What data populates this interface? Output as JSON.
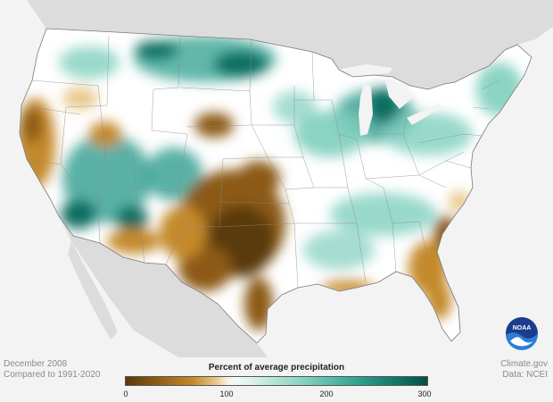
{
  "map": {
    "subject": "contiguous United States precipitation anomaly",
    "period_text": "December 2008",
    "baseline_text": "Compared to 1991-2020"
  },
  "legend": {
    "title": "Percent of average precipitation",
    "ticks": [
      "0",
      "100",
      "200",
      "300"
    ],
    "colors": [
      "#5a3a0c",
      "#c4892a",
      "#faf4e6",
      "#7fcfbe",
      "#074e45"
    ]
  },
  "credits": {
    "site": "Climate.gov",
    "source": "Data: NCEI"
  },
  "logo": {
    "icon": "noaa-logo-icon",
    "text": "NOAA"
  },
  "colors": {
    "land": "#ffffff",
    "ocean": "#f3f3f3",
    "neighbor_land": "#dcdcdc",
    "dry": "#8c5a14",
    "very_dry": "#5a3a0c",
    "wet": "#2e9e8e",
    "very_wet": "#0e6d61",
    "state_lines": "#8a8a8a"
  }
}
